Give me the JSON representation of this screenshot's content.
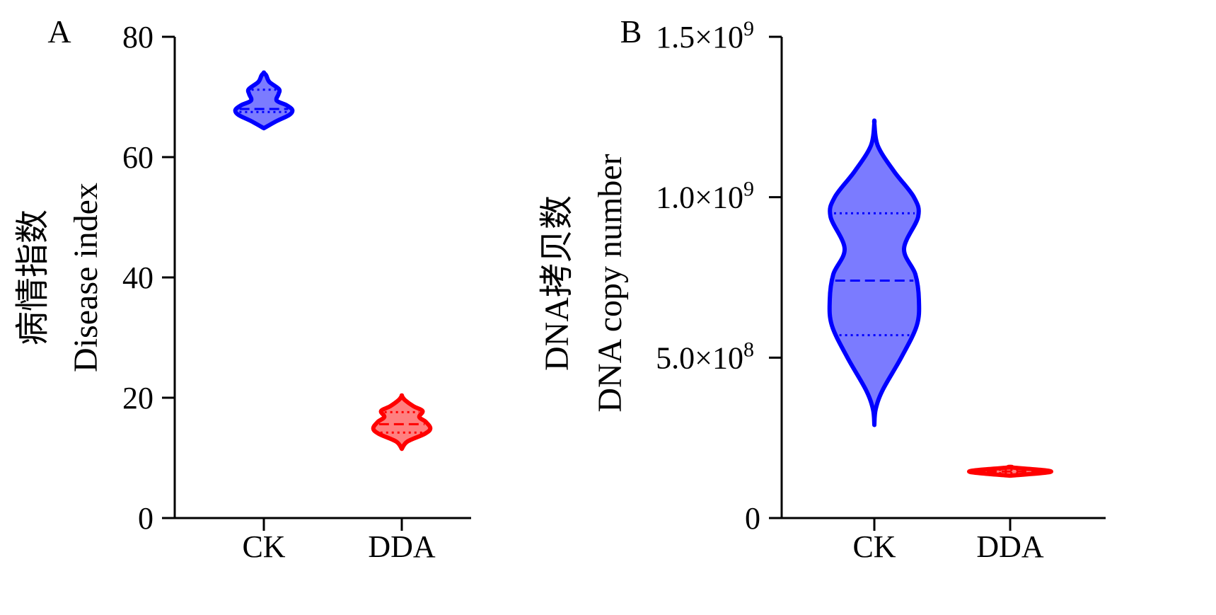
{
  "chart_data": [
    {
      "type": "violin",
      "panel_label": "A",
      "ylabel_cn": "病情指数",
      "ylabel": "Disease index",
      "ylim": [
        0,
        80
      ],
      "yticks": [
        0,
        20,
        40,
        60,
        80
      ],
      "ytick_labels": [
        "0",
        "20",
        "40",
        "60",
        "80"
      ],
      "categories": [
        "CK",
        "DDA"
      ],
      "series": [
        {
          "category": "CK",
          "color": "#0000ff",
          "fill": "#7b7bff",
          "median": 68.0,
          "q1": 67.5,
          "q3": 71.2,
          "profile": [
            [
              64.8,
              0.0
            ],
            [
              66.0,
              0.28
            ],
            [
              67.0,
              0.55
            ],
            [
              67.8,
              0.62
            ],
            [
              68.6,
              0.5
            ],
            [
              69.4,
              0.28
            ],
            [
              70.5,
              0.32
            ],
            [
              71.3,
              0.33
            ],
            [
              72.5,
              0.12
            ],
            [
              73.6,
              0.05
            ],
            [
              74.0,
              0.0
            ]
          ]
        },
        {
          "category": "DDA",
          "color": "#ff0000",
          "fill": "#ff8080",
          "median": 15.6,
          "q1": 14.2,
          "q3": 17.6,
          "profile": [
            [
              11.5,
              0.0
            ],
            [
              12.7,
              0.12
            ],
            [
              14.0,
              0.5
            ],
            [
              14.9,
              0.62
            ],
            [
              16.0,
              0.52
            ],
            [
              16.8,
              0.38
            ],
            [
              17.8,
              0.45
            ],
            [
              18.6,
              0.25
            ],
            [
              19.6,
              0.07
            ],
            [
              20.3,
              0.0
            ]
          ]
        }
      ]
    },
    {
      "type": "violin",
      "panel_label": "B",
      "ylabel_cn": "DNA拷贝数",
      "ylabel": "DNA copy number",
      "ylim": [
        0,
        1500000000
      ],
      "yticks": [
        0,
        500000000,
        1000000000,
        1500000000
      ],
      "ytick_labels": [
        "0",
        "5.0×10",
        "1.0×10",
        "1.5×10"
      ],
      "ytick_exponents": [
        "",
        "8",
        "9",
        "9"
      ],
      "categories": [
        "CK",
        "DDA"
      ],
      "series": [
        {
          "category": "CK",
          "color": "#0000ff",
          "fill": "#7b7bff",
          "median": 740000000,
          "q1": 570000000,
          "q3": 950000000,
          "profile": [
            [
              290000000,
              0.0
            ],
            [
              340000000,
              0.02
            ],
            [
              400000000,
              0.12
            ],
            [
              500000000,
              0.38
            ],
            [
              600000000,
              0.6
            ],
            [
              680000000,
              0.63
            ],
            [
              760000000,
              0.58
            ],
            [
              840000000,
              0.42
            ],
            [
              940000000,
              0.62
            ],
            [
              1000000000,
              0.56
            ],
            [
              1080000000,
              0.28
            ],
            [
              1160000000,
              0.05
            ],
            [
              1230000000,
              0.0
            ]
          ]
        },
        {
          "category": "DDA",
          "color": "#ff0000",
          "fill": "#ff8080",
          "median": 145000000,
          "q1": 140000000,
          "q3": 150000000,
          "profile": [
            [
              132000000,
              0.0
            ],
            [
              145000000,
              0.58
            ],
            [
              158000000,
              0.0
            ]
          ]
        }
      ]
    }
  ]
}
